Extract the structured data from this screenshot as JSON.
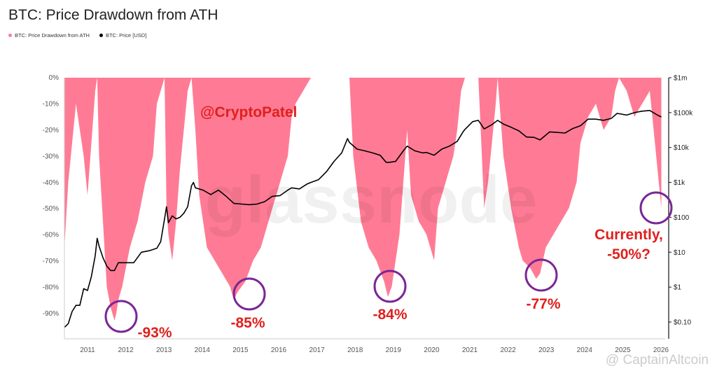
{
  "colors": {
    "drawdown": "#ff7b95",
    "price": "#000000",
    "annotation": "#e0201c",
    "circle": "#7a2796",
    "tag": "#e0201c"
  },
  "chart_data": {
    "type": "area",
    "title": "BTC: Price Drawdown from ATH",
    "legend": [
      "BTC: Price Drawdown from ATH",
      "BTC: Price [USD]"
    ],
    "watermark": "glassnode",
    "tag": "@CryptoPatel",
    "attribution": "@ CaptainAltcoin",
    "x_ticks": [
      "2011",
      "2012",
      "2013",
      "2014",
      "2015",
      "2016",
      "2017",
      "2018",
      "2019",
      "2020",
      "2021",
      "2022",
      "2023",
      "2024",
      "2025",
      "2026"
    ],
    "y_left_ticks": [
      "0%",
      "-10%",
      "-20%",
      "-30%",
      "-40%",
      "-50%",
      "-60%",
      "-70%",
      "-80%",
      "-90%"
    ],
    "y_left_range": [
      -100,
      0
    ],
    "y_right_ticks": [
      "$1m",
      "$100k",
      "$10k",
      "$1k",
      "$100",
      "$10",
      "$1",
      "$0.10"
    ],
    "y_right_scale": "log",
    "x_range": [
      2010.6,
      2026.2
    ],
    "series": [
      {
        "name": "BTC: Price Drawdown from ATH",
        "x": [
          2010.6,
          2010.7,
          2010.8,
          2010.9,
          2011.0,
          2011.1,
          2011.2,
          2011.3,
          2011.4,
          2011.45,
          2011.5,
          2011.6,
          2011.7,
          2011.8,
          2011.9,
          2011.95,
          2012.0,
          2012.1,
          2012.3,
          2012.5,
          2012.7,
          2012.9,
          2013.0,
          2013.1,
          2013.2,
          2013.25,
          2013.3,
          2013.4,
          2013.5,
          2013.6,
          2013.7,
          2013.8,
          2013.9,
          2013.95,
          2014.0,
          2014.1,
          2014.3,
          2014.5,
          2014.7,
          2014.9,
          2015.0,
          2015.1,
          2015.3,
          2015.5,
          2015.7,
          2015.9,
          2016.0,
          2016.2,
          2016.4,
          2016.5,
          2016.6,
          2016.8,
          2017.0,
          2017.2,
          2017.4,
          2017.6,
          2017.8,
          2017.9,
          2017.95,
          2018.0,
          2018.1,
          2018.3,
          2018.5,
          2018.7,
          2018.9,
          2019.0,
          2019.1,
          2019.3,
          2019.45,
          2019.5,
          2019.6,
          2019.8,
          2020.0,
          2020.2,
          2020.3,
          2020.5,
          2020.7,
          2020.8,
          2020.9,
          2021.0,
          2021.2,
          2021.35,
          2021.5,
          2021.6,
          2021.8,
          2021.85,
          2022.0,
          2022.2,
          2022.4,
          2022.5,
          2022.7,
          2022.85,
          2022.95,
          2023.1,
          2023.3,
          2023.5,
          2023.7,
          2023.9,
          2024.0,
          2024.2,
          2024.4,
          2024.6,
          2024.8,
          2024.9,
          2025.0,
          2025.2,
          2025.4,
          2025.6,
          2025.8,
          2025.9,
          2026.0,
          2026.1
        ],
        "values": [
          -65,
          -40,
          -25,
          -10,
          -20,
          -30,
          -45,
          -25,
          -5,
          0,
          -30,
          -55,
          -80,
          -88,
          -93,
          -90,
          -85,
          -80,
          -65,
          -55,
          -40,
          -30,
          -10,
          -5,
          0,
          -50,
          -60,
          -70,
          -55,
          -35,
          -20,
          -5,
          0,
          -10,
          -20,
          -45,
          -65,
          -70,
          -75,
          -80,
          -85,
          -82,
          -78,
          -70,
          -65,
          -55,
          -50,
          -40,
          -30,
          -15,
          -10,
          -5,
          0,
          0,
          0,
          0,
          0,
          0,
          0,
          0,
          -30,
          -55,
          -65,
          -70,
          -78,
          -84,
          -80,
          -60,
          -30,
          -20,
          -45,
          -55,
          -60,
          -70,
          -50,
          -40,
          -30,
          -20,
          -5,
          0,
          0,
          0,
          -50,
          -40,
          -10,
          0,
          -30,
          -50,
          -65,
          -70,
          -73,
          -77,
          -75,
          -65,
          -60,
          -55,
          -50,
          -40,
          -25,
          -15,
          -10,
          -20,
          -15,
          -5,
          0,
          -5,
          -15,
          -10,
          -5,
          -20,
          -35,
          -50
        ]
      },
      {
        "name": "BTC: Price [USD]",
        "x": [
          2010.6,
          2010.7,
          2010.8,
          2010.9,
          2011.0,
          2011.1,
          2011.2,
          2011.3,
          2011.4,
          2011.45,
          2011.5,
          2011.6,
          2011.7,
          2011.8,
          2011.9,
          2012.0,
          2012.2,
          2012.4,
          2012.6,
          2012.8,
          2013.0,
          2013.1,
          2013.2,
          2013.25,
          2013.3,
          2013.4,
          2013.5,
          2013.6,
          2013.7,
          2013.8,
          2013.9,
          2013.95,
          2014.0,
          2014.2,
          2014.4,
          2014.6,
          2014.8,
          2015.0,
          2015.2,
          2015.4,
          2015.6,
          2015.8,
          2016.0,
          2016.2,
          2016.4,
          2016.5,
          2016.7,
          2016.9,
          2017.0,
          2017.2,
          2017.4,
          2017.6,
          2017.8,
          2017.95,
          2018.0,
          2018.2,
          2018.4,
          2018.6,
          2018.8,
          2018.95,
          2019.0,
          2019.2,
          2019.4,
          2019.5,
          2019.7,
          2019.9,
          2020.0,
          2020.2,
          2020.4,
          2020.6,
          2020.8,
          2020.95,
          2021.0,
          2021.2,
          2021.35,
          2021.5,
          2021.7,
          2021.85,
          2022.0,
          2022.2,
          2022.4,
          2022.6,
          2022.8,
          2022.95,
          2023.2,
          2023.4,
          2023.6,
          2023.8,
          2024.0,
          2024.2,
          2024.4,
          2024.6,
          2024.8,
          2024.95,
          2025.0,
          2025.2,
          2025.4,
          2025.6,
          2025.8,
          2026.0,
          2026.1
        ],
        "values": [
          0.07,
          0.09,
          0.2,
          0.3,
          0.3,
          0.9,
          0.8,
          2,
          8,
          25,
          15,
          7,
          4,
          3,
          3,
          5,
          5,
          5,
          10,
          11,
          13,
          20,
          90,
          200,
          70,
          110,
          90,
          100,
          130,
          200,
          800,
          1000,
          700,
          600,
          450,
          600,
          400,
          250,
          240,
          230,
          240,
          280,
          400,
          420,
          600,
          700,
          650,
          900,
          1000,
          1200,
          2000,
          4000,
          7000,
          18000,
          14000,
          9000,
          8000,
          7000,
          6000,
          3800,
          3700,
          4000,
          8000,
          11000,
          8000,
          7000,
          7200,
          6000,
          9000,
          11000,
          15000,
          28000,
          33000,
          55000,
          60000,
          34000,
          45000,
          60000,
          47000,
          38000,
          30000,
          20000,
          19500,
          16500,
          28000,
          27000,
          26000,
          35000,
          42000,
          65000,
          65000,
          60000,
          68000,
          95000,
          93000,
          85000,
          100000,
          110000,
          115000,
          85000,
          75000
        ]
      }
    ],
    "annotations": [
      {
        "text": "-93%",
        "x": 2011.9,
        "y": -93
      },
      {
        "text": "-85%",
        "x": 2015.3,
        "y": -85
      },
      {
        "text": "-84%",
        "x": 2019.0,
        "y": -84
      },
      {
        "text": "-77%",
        "x": 2022.9,
        "y": -77
      },
      {
        "text": "Currently,",
        "x": 2026.0,
        "y": -50
      },
      {
        "text": "-50%?",
        "x": 2026.0,
        "y": -50
      }
    ]
  }
}
